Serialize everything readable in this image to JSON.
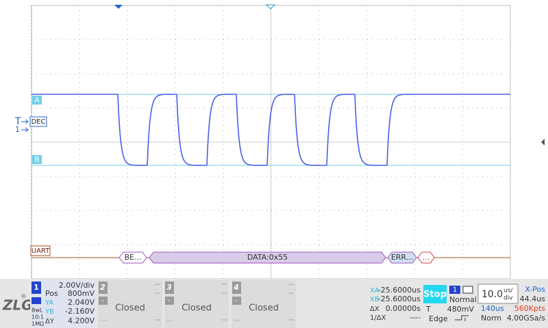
{
  "screen": {
    "markers": {
      "cursor_a": "A",
      "cursor_b": "B",
      "trigger": "T",
      "channel": "1",
      "decode_format": "DEC",
      "bus": "UART"
    },
    "decode": [
      "BE...",
      "DATA:0x55",
      "ERR...",
      "..."
    ]
  },
  "logo": {
    "name": "ZLG",
    "registered": "®"
  },
  "channel1": {
    "number": "1",
    "scale": "2.00V/div",
    "pos_label": "Pos",
    "pos": "800mV",
    "ya_label": "YA",
    "ya": "2.040V",
    "yb_label": "YB",
    "yb": "-2.160V",
    "dy_label": "ΔY",
    "dy": "4.200V",
    "bandwidth": "BwL",
    "probe": "10:1",
    "impedance": "1MΩ"
  },
  "channels": [
    {
      "number": "2",
      "scale": "--",
      "pos": "--",
      "mark": "-",
      "status": "Closed",
      "bottom_left": "-.-",
      "bottom_right": "--"
    },
    {
      "number": "3",
      "scale": "--",
      "pos": "--",
      "mark": "-",
      "status": "Closed",
      "bottom_left": "-.-",
      "bottom_right": "--"
    },
    {
      "number": "4",
      "scale": "--",
      "pos": "--",
      "mark": "-",
      "status": "Closed",
      "bottom_left": "-.-",
      "bottom_right": "--"
    }
  ],
  "cursors": {
    "xa_label": "XA",
    "xa": "-25.6000us",
    "xb_label": "XB",
    "xb": "-25.6000us",
    "dx_label": "ΔX",
    "dx": "0.00000s",
    "inv_dx_label": "1/ΔX",
    "inv_dx": "----"
  },
  "run": {
    "state": "Stop"
  },
  "trigger": {
    "source": "1",
    "mode": "Normal",
    "level_label": "T",
    "level": "480mV",
    "type": "Edge"
  },
  "timebase": {
    "scale": "10.0",
    "unit_top": "us/",
    "unit_bottom": "div",
    "xpos_label": "X-Pos",
    "xpos": "44.4us",
    "window": "140us",
    "depth": "560Kpts",
    "acq": "Norm",
    "rate": "4.00GSa/s"
  }
}
